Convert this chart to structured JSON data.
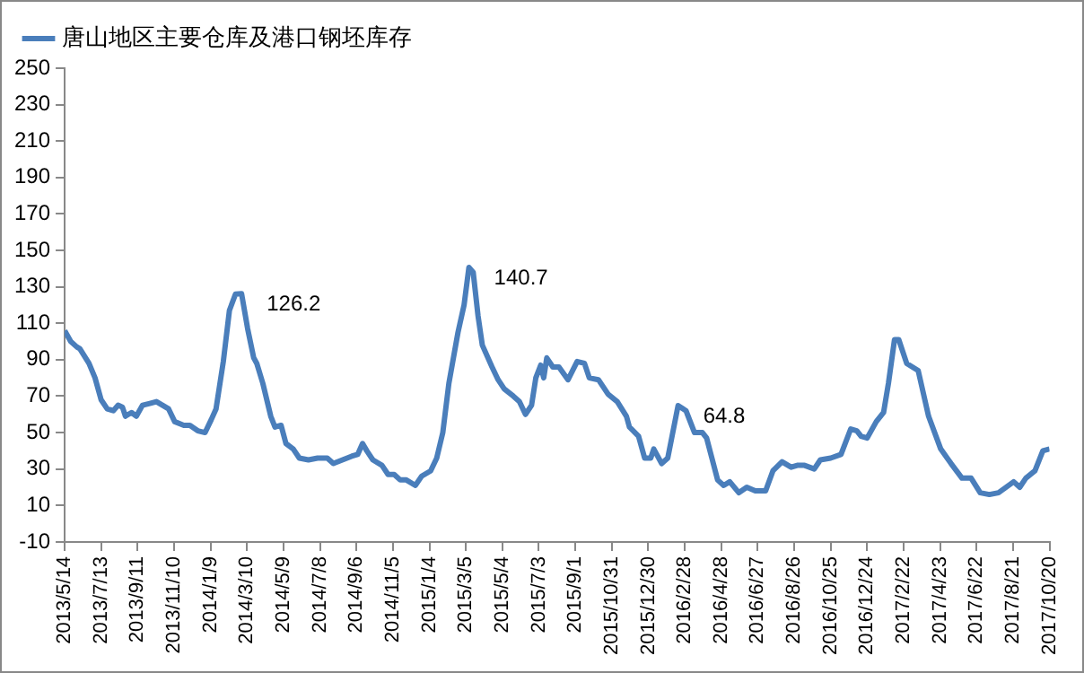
{
  "chart_data": {
    "type": "line",
    "x": [
      "2013-05-14",
      "2013-05-24",
      "2013-06-03",
      "2013-06-08",
      "2013-06-23",
      "2013-07-03",
      "2013-07-13",
      "2013-07-23",
      "2013-08-02",
      "2013-08-10",
      "2013-08-17",
      "2013-08-22",
      "2013-09-01",
      "2013-09-09",
      "2013-09-19",
      "2013-10-01",
      "2013-10-12",
      "2013-10-22",
      "2013-11-01",
      "2013-11-11",
      "2013-11-26",
      "2013-12-06",
      "2013-12-19",
      "2013-12-31",
      "2014-01-10",
      "2014-01-18",
      "2014-01-30",
      "2014-02-09",
      "2014-02-19",
      "2014-03-01",
      "2014-03-11",
      "2014-03-21",
      "2014-03-26",
      "2014-04-05",
      "2014-04-18",
      "2014-04-25",
      "2014-05-05",
      "2014-05-13",
      "2014-05-25",
      "2014-06-04",
      "2014-06-19",
      "2014-07-04",
      "2014-07-20",
      "2014-07-30",
      "2014-08-14",
      "2014-08-29",
      "2014-09-08",
      "2014-09-16",
      "2014-09-23",
      "2014-10-03",
      "2014-10-18",
      "2014-10-28",
      "2014-11-07",
      "2014-11-17",
      "2014-11-27",
      "2014-12-12",
      "2014-12-22",
      "2015-01-06",
      "2015-01-16",
      "2015-01-26",
      "2015-02-05",
      "2015-02-20",
      "2015-03-02",
      "2015-03-10",
      "2015-03-17",
      "2015-03-25",
      "2015-04-01",
      "2015-04-17",
      "2015-04-27",
      "2015-05-07",
      "2015-05-22",
      "2015-06-01",
      "2015-06-11",
      "2015-06-21",
      "2015-06-28",
      "2015-07-06",
      "2015-07-11",
      "2015-07-16",
      "2015-07-26",
      "2015-08-05",
      "2015-08-20",
      "2015-09-04",
      "2015-09-16",
      "2015-09-24",
      "2015-10-09",
      "2015-10-25",
      "2015-11-09",
      "2015-11-24",
      "2015-11-29",
      "2015-12-14",
      "2015-12-24",
      "2016-01-03",
      "2016-01-08",
      "2016-01-21",
      "2016-01-31",
      "2016-02-17",
      "2016-03-01",
      "2016-03-15",
      "2016-03-28",
      "2016-04-04",
      "2016-04-22",
      "2016-05-02",
      "2016-05-12",
      "2016-05-27",
      "2016-06-09",
      "2016-06-23",
      "2016-07-10",
      "2016-07-22",
      "2016-08-06",
      "2016-08-21",
      "2016-08-31",
      "2016-09-12",
      "2016-09-28",
      "2016-10-08",
      "2016-10-25",
      "2016-11-11",
      "2016-11-27",
      "2016-12-07",
      "2016-12-14",
      "2016-12-24",
      "2017-01-08",
      "2017-01-20",
      "2017-01-28",
      "2017-02-07",
      "2017-02-14",
      "2017-02-27",
      "2017-03-18",
      "2017-04-04",
      "2017-04-24",
      "2017-05-11",
      "2017-05-29",
      "2017-06-13",
      "2017-06-28",
      "2017-07-13",
      "2017-07-28",
      "2017-08-22",
      "2017-09-01",
      "2017-09-11",
      "2017-09-26",
      "2017-10-09",
      "2017-10-20"
    ],
    "series": [
      {
        "name": "唐山地区主要仓库及港口钢坯库存",
        "color": "#4a7ebb",
        "values": [
          106,
          100,
          97,
          96,
          88,
          80,
          68,
          63,
          62,
          65,
          64,
          59,
          61,
          59,
          65,
          66,
          67,
          65,
          63,
          56,
          54,
          54,
          51,
          50,
          57,
          63,
          89,
          117,
          126,
          126.2,
          107,
          91,
          88,
          77,
          59,
          53,
          54,
          44,
          41,
          36,
          35,
          36,
          36,
          33,
          35,
          37,
          38,
          44,
          40,
          35,
          32,
          27,
          27,
          24,
          24,
          21,
          26,
          29,
          36,
          50,
          77,
          105,
          120,
          140.7,
          138,
          114,
          98,
          86,
          79,
          74,
          70,
          67,
          60,
          65,
          80,
          87,
          80,
          91,
          86,
          86,
          79,
          89,
          88,
          80,
          79,
          71,
          67,
          59,
          53,
          48,
          36,
          36,
          41,
          33,
          36,
          64.8,
          62,
          50,
          50,
          47,
          24,
          21,
          23,
          17,
          20,
          18,
          18,
          29,
          34,
          31,
          32,
          32,
          30,
          35,
          36,
          38,
          52,
          51,
          48,
          47,
          56,
          61,
          77,
          101,
          101,
          88,
          84,
          59,
          41,
          33,
          25,
          25,
          17,
          16,
          17,
          23,
          20,
          25,
          29,
          40,
          41
        ]
      }
    ],
    "xlim": [
      "2013-05-14",
      "2017-10-20"
    ],
    "xticks": [
      {
        "value": "2013-05-14",
        "label": "2013/5/14"
      },
      {
        "value": "2013-07-13",
        "label": "2013/7/13"
      },
      {
        "value": "2013-09-11",
        "label": "2013/9/11"
      },
      {
        "value": "2013-11-10",
        "label": "2013/11/10"
      },
      {
        "value": "2014-01-09",
        "label": "2014/1/9"
      },
      {
        "value": "2014-03-10",
        "label": "2014/3/10"
      },
      {
        "value": "2014-05-09",
        "label": "2014/5/9"
      },
      {
        "value": "2014-07-08",
        "label": "2014/7/8"
      },
      {
        "value": "2014-09-06",
        "label": "2014/9/6"
      },
      {
        "value": "2014-11-05",
        "label": "2014/11/5"
      },
      {
        "value": "2015-01-04",
        "label": "2015/1/4"
      },
      {
        "value": "2015-03-05",
        "label": "2015/3/5"
      },
      {
        "value": "2015-05-04",
        "label": "2015/5/4"
      },
      {
        "value": "2015-07-03",
        "label": "2015/7/3"
      },
      {
        "value": "2015-09-01",
        "label": "2015/9/1"
      },
      {
        "value": "2015-10-31",
        "label": "2015/10/31"
      },
      {
        "value": "2015-12-30",
        "label": "2015/12/30"
      },
      {
        "value": "2016-02-28",
        "label": "2016/2/28"
      },
      {
        "value": "2016-04-28",
        "label": "2016/4/28"
      },
      {
        "value": "2016-06-27",
        "label": "2016/6/27"
      },
      {
        "value": "2016-08-26",
        "label": "2016/8/26"
      },
      {
        "value": "2016-10-25",
        "label": "2016/10/25"
      },
      {
        "value": "2016-12-24",
        "label": "2016/12/24"
      },
      {
        "value": "2017-02-22",
        "label": "2017/2/22"
      },
      {
        "value": "2017-04-23",
        "label": "2017/4/23"
      },
      {
        "value": "2017-06-22",
        "label": "2017/6/22"
      },
      {
        "value": "2017-08-21",
        "label": "2017/8/21"
      },
      {
        "value": "2017-10-20",
        "label": "2017/10/20"
      }
    ],
    "ylim": [
      -10,
      250
    ],
    "yticks": [
      -10,
      10,
      30,
      50,
      70,
      90,
      110,
      130,
      150,
      170,
      190,
      210,
      230,
      250
    ],
    "annotations": [
      {
        "text": "126.2",
        "x": "2014-03-01",
        "y": 126.2
      },
      {
        "text": "140.7",
        "x": "2015-03-10",
        "y": 140.7
      },
      {
        "text": "64.8",
        "x": "2016-02-17",
        "y": 64.8
      }
    ],
    "grid": false,
    "legend": "top left",
    "marker": "none",
    "line_style": "solid"
  }
}
